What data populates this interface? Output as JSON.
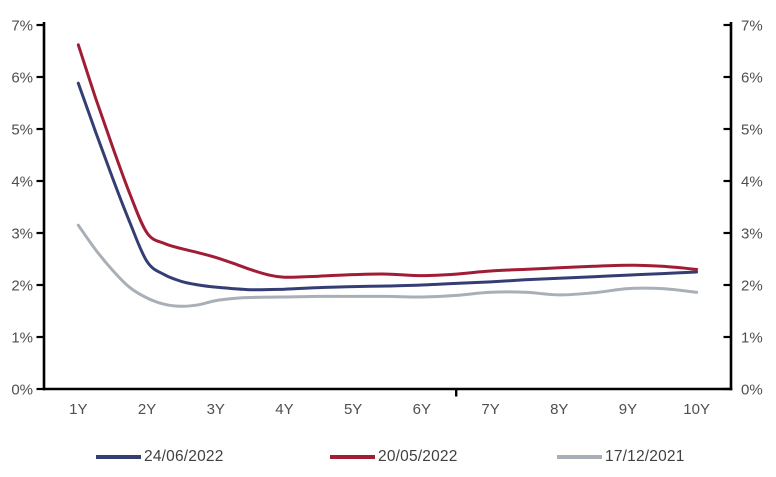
{
  "chart_data": {
    "type": "line",
    "title": "",
    "xlabel": "",
    "ylabel": "",
    "xlim": [
      0.5,
      10.5
    ],
    "ylim": [
      0,
      7
    ],
    "grid": false,
    "legend_position": "bottom",
    "x_tick_positions": [
      1,
      2,
      3,
      4,
      5,
      6,
      7,
      8,
      9,
      10
    ],
    "x_tick_labels": [
      "1Y",
      "2Y",
      "3Y",
      "4Y",
      "5Y",
      "6Y",
      "7Y",
      "8Y",
      "9Y",
      "10Y"
    ],
    "y_tick_values": [
      0,
      1,
      2,
      3,
      4,
      5,
      6,
      7
    ],
    "y_tick_labels_left": [
      "0%",
      "1%",
      "2%",
      "3%",
      "4%",
      "5%",
      "6%",
      "7%"
    ],
    "y_tick_labels_right": [
      "0%",
      "1%",
      "2%",
      "3%",
      "4%",
      "5%",
      "6%",
      "7%"
    ],
    "minor_x_tick_position": 6.5,
    "series": [
      {
        "name": "24/06/2022",
        "color": "#343e74",
        "points": [
          [
            1,
            5.88
          ],
          [
            1.25,
            4.95
          ],
          [
            1.5,
            4.05
          ],
          [
            1.75,
            3.2
          ],
          [
            2,
            2.45
          ],
          [
            2.25,
            2.2
          ],
          [
            2.5,
            2.07
          ],
          [
            2.75,
            2.0
          ],
          [
            3,
            1.96
          ],
          [
            3.5,
            1.91
          ],
          [
            4,
            1.92
          ],
          [
            4.5,
            1.95
          ],
          [
            5,
            1.97
          ],
          [
            5.5,
            1.98
          ],
          [
            6,
            2.0
          ],
          [
            6.5,
            2.03
          ],
          [
            7,
            2.06
          ],
          [
            7.5,
            2.1
          ],
          [
            8,
            2.13
          ],
          [
            8.5,
            2.16
          ],
          [
            9,
            2.19
          ],
          [
            9.5,
            2.22
          ],
          [
            10,
            2.25
          ]
        ]
      },
      {
        "name": "20/05/2022",
        "color": "#a01d35",
        "points": [
          [
            1,
            6.62
          ],
          [
            1.25,
            5.6
          ],
          [
            1.5,
            4.65
          ],
          [
            1.75,
            3.75
          ],
          [
            2,
            3.0
          ],
          [
            2.25,
            2.8
          ],
          [
            2.5,
            2.7
          ],
          [
            2.75,
            2.62
          ],
          [
            3,
            2.53
          ],
          [
            3.25,
            2.42
          ],
          [
            3.5,
            2.3
          ],
          [
            3.75,
            2.2
          ],
          [
            4,
            2.15
          ],
          [
            4.5,
            2.17
          ],
          [
            5,
            2.2
          ],
          [
            5.5,
            2.21
          ],
          [
            6,
            2.18
          ],
          [
            6.5,
            2.21
          ],
          [
            7,
            2.27
          ],
          [
            7.5,
            2.3
          ],
          [
            8,
            2.33
          ],
          [
            8.5,
            2.36
          ],
          [
            9,
            2.38
          ],
          [
            9.5,
            2.36
          ],
          [
            10,
            2.3
          ]
        ]
      },
      {
        "name": "17/12/2021",
        "color": "#a9afb6",
        "points": [
          [
            1,
            3.15
          ],
          [
            1.25,
            2.68
          ],
          [
            1.5,
            2.28
          ],
          [
            1.75,
            1.95
          ],
          [
            2,
            1.75
          ],
          [
            2.25,
            1.63
          ],
          [
            2.5,
            1.59
          ],
          [
            2.75,
            1.62
          ],
          [
            3,
            1.7
          ],
          [
            3.25,
            1.74
          ],
          [
            3.5,
            1.76
          ],
          [
            4,
            1.77
          ],
          [
            4.5,
            1.78
          ],
          [
            5,
            1.78
          ],
          [
            5.5,
            1.78
          ],
          [
            6,
            1.77
          ],
          [
            6.5,
            1.8
          ],
          [
            7,
            1.86
          ],
          [
            7.5,
            1.86
          ],
          [
            8,
            1.81
          ],
          [
            8.5,
            1.85
          ],
          [
            9,
            1.93
          ],
          [
            9.5,
            1.93
          ],
          [
            10,
            1.86
          ]
        ]
      }
    ]
  },
  "colors": {
    "axis": "#000000",
    "tick_label": "#4f4f4f",
    "legend_label": "#404040",
    "background": "#ffffff"
  }
}
